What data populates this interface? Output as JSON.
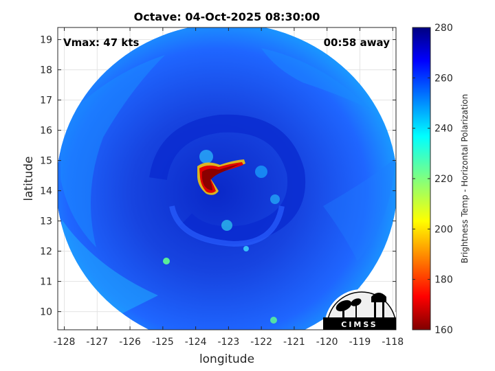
{
  "title": "Octave: 04-Oct-2025 08:30:00",
  "annotations": {
    "vmax": "Vmax: 47 kts",
    "eta": "00:58 away"
  },
  "axes": {
    "xlabel": "longitude",
    "ylabel": "latitude",
    "xticks": [
      "-128",
      "-127",
      "-126",
      "-125",
      "-124",
      "-123",
      "-122",
      "-121",
      "-120",
      "-119",
      "-118"
    ],
    "yticks": [
      "19",
      "18",
      "17",
      "16",
      "15",
      "14",
      "13",
      "12",
      "11",
      "10"
    ],
    "xlim": [
      -128.2,
      -117.9
    ],
    "ylim": [
      9.4,
      19.4
    ]
  },
  "colorbar": {
    "label": "Brightness Temp - Horizontal Polarization",
    "ticks": [
      "280",
      "260",
      "240",
      "220",
      "200",
      "180",
      "160"
    ],
    "range": [
      160,
      280
    ],
    "colormap": "jet"
  },
  "logo": {
    "text": "CIMSS"
  },
  "colors": {
    "background_field": "#1f5cff",
    "cold_core": "#8b0000",
    "warm_outer": "#00a0ff"
  }
}
